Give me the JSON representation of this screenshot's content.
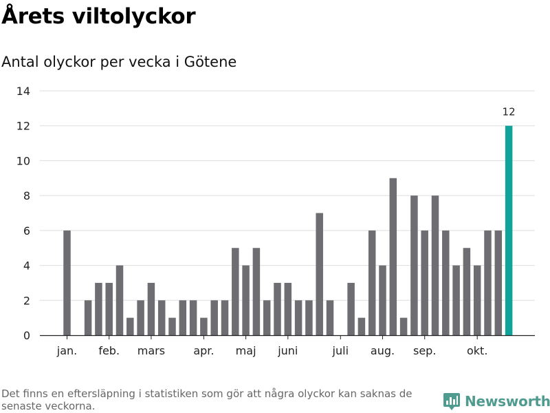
{
  "title": "Årets viltolyckor",
  "subtitle": "Antal olyckor per vecka i Götene",
  "footnote": "Det finns en eftersläpning i statistiken som gör att några olyckor kan saknas de senaste veckorna.",
  "brand": {
    "name": "Newsworthy",
    "color": "#4f9b8f",
    "icon": "bar-chart-icon"
  },
  "colors": {
    "bar": "#6e6d72",
    "highlight": "#0fa39a",
    "grid": "#dddddd",
    "axis": "#222222"
  },
  "chart_data": {
    "type": "bar",
    "x_unit": "week",
    "weeks": [
      1,
      2,
      3,
      4,
      5,
      6,
      7,
      8,
      9,
      10,
      11,
      12,
      13,
      14,
      15,
      16,
      17,
      18,
      19,
      20,
      21,
      22,
      23,
      24,
      25,
      26,
      27,
      28,
      29,
      30,
      31,
      32,
      33,
      34,
      35,
      36,
      37,
      38,
      39,
      40,
      41,
      42,
      43
    ],
    "values": [
      6,
      0,
      2,
      3,
      3,
      4,
      1,
      2,
      3,
      2,
      1,
      2,
      2,
      1,
      2,
      2,
      5,
      4,
      5,
      2,
      3,
      3,
      2,
      2,
      7,
      2,
      0,
      3,
      1,
      6,
      4,
      9,
      1,
      8,
      6,
      8,
      6,
      4,
      5,
      4,
      6,
      6,
      12
    ],
    "highlight_index": 42,
    "highlight_label": "12",
    "ylim": [
      0,
      14
    ],
    "yticks": [
      0,
      2,
      4,
      6,
      8,
      10,
      12,
      14
    ],
    "month_labels": [
      {
        "label": "jan.",
        "week": 1
      },
      {
        "label": "feb.",
        "week": 5
      },
      {
        "label": "mars",
        "week": 9
      },
      {
        "label": "apr.",
        "week": 14
      },
      {
        "label": "maj",
        "week": 18
      },
      {
        "label": "juni",
        "week": 22
      },
      {
        "label": "juli",
        "week": 27
      },
      {
        "label": "aug.",
        "week": 31
      },
      {
        "label": "sep.",
        "week": 35
      },
      {
        "label": "okt.",
        "week": 40
      }
    ],
    "grid": true,
    "legend": "none"
  }
}
